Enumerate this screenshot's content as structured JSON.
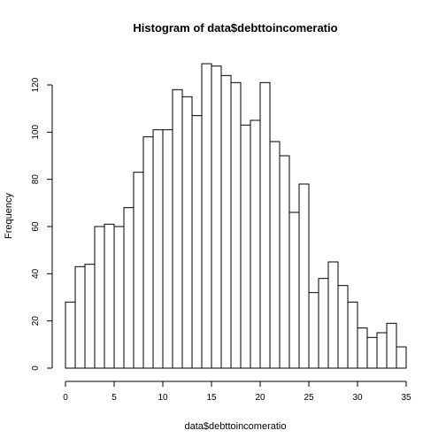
{
  "chart_data": {
    "type": "bar",
    "subtype": "histogram",
    "title": "Histogram of data$debttoincomeratio",
    "xlabel": "data$debttoincomeratio",
    "ylabel": "Frequency",
    "bin_width": 1,
    "bin_start": 0,
    "bins": [
      {
        "from": 0,
        "to": 1,
        "value": 28
      },
      {
        "from": 1,
        "to": 2,
        "value": 43
      },
      {
        "from": 2,
        "to": 3,
        "value": 44
      },
      {
        "from": 3,
        "to": 4,
        "value": 60
      },
      {
        "from": 4,
        "to": 5,
        "value": 61
      },
      {
        "from": 5,
        "to": 6,
        "value": 60
      },
      {
        "from": 6,
        "to": 7,
        "value": 68
      },
      {
        "from": 7,
        "to": 8,
        "value": 83
      },
      {
        "from": 8,
        "to": 9,
        "value": 98
      },
      {
        "from": 9,
        "to": 10,
        "value": 101
      },
      {
        "from": 10,
        "to": 11,
        "value": 101
      },
      {
        "from": 11,
        "to": 12,
        "value": 118
      },
      {
        "from": 12,
        "to": 13,
        "value": 115
      },
      {
        "from": 13,
        "to": 14,
        "value": 107
      },
      {
        "from": 14,
        "to": 15,
        "value": 129
      },
      {
        "from": 15,
        "to": 16,
        "value": 128
      },
      {
        "from": 16,
        "to": 17,
        "value": 124
      },
      {
        "from": 17,
        "to": 18,
        "value": 121
      },
      {
        "from": 18,
        "to": 19,
        "value": 103
      },
      {
        "from": 19,
        "to": 20,
        "value": 105
      },
      {
        "from": 20,
        "to": 21,
        "value": 121
      },
      {
        "from": 21,
        "to": 22,
        "value": 96
      },
      {
        "from": 22,
        "to": 23,
        "value": 90
      },
      {
        "from": 23,
        "to": 24,
        "value": 66
      },
      {
        "from": 24,
        "to": 25,
        "value": 78
      },
      {
        "from": 25,
        "to": 26,
        "value": 32
      },
      {
        "from": 26,
        "to": 27,
        "value": 38
      },
      {
        "from": 27,
        "to": 28,
        "value": 45
      },
      {
        "from": 28,
        "to": 29,
        "value": 35
      },
      {
        "from": 29,
        "to": 30,
        "value": 28
      },
      {
        "from": 30,
        "to": 31,
        "value": 17
      },
      {
        "from": 31,
        "to": 32,
        "value": 13
      },
      {
        "from": 32,
        "to": 33,
        "value": 15
      },
      {
        "from": 33,
        "to": 34,
        "value": 19
      },
      {
        "from": 34,
        "to": 35,
        "value": 9
      }
    ],
    "xlim": [
      0,
      35
    ],
    "ylim": [
      0,
      129
    ],
    "x_ticks": [
      "0",
      "5",
      "10",
      "15",
      "20",
      "25",
      "30",
      "35"
    ],
    "y_ticks": [
      "0",
      "20",
      "40",
      "60",
      "80",
      "100",
      "120"
    ],
    "grid": false,
    "legend": "none",
    "bar_fill": "#ffffff",
    "bar_stroke": "#000000"
  }
}
